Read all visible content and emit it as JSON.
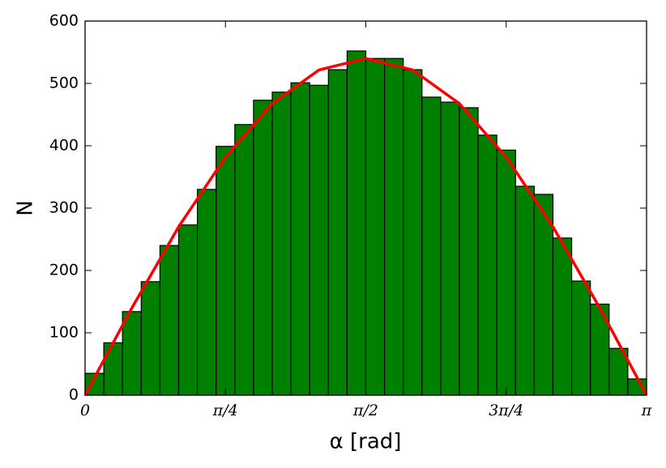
{
  "chart_data": {
    "type": "histogram",
    "xlabel": "α [rad]",
    "ylabel": "N",
    "color": "#008000",
    "bins": [
      0,
      0.1047,
      0.2094,
      0.3142,
      0.4189,
      0.5236,
      0.6283,
      0.733,
      0.8378,
      0.9425,
      1.0472,
      1.1519,
      1.2566,
      1.3614,
      1.4661,
      1.5708,
      1.6755,
      1.7802,
      1.885,
      1.9897,
      2.0944,
      2.1991,
      2.3038,
      2.4086,
      2.5133,
      2.618,
      2.7227,
      2.8274,
      2.9322,
      3.0369,
      3.1416
    ],
    "values": [
      35,
      84,
      134,
      182,
      240,
      273,
      330,
      399,
      434,
      473,
      486,
      501,
      497,
      522,
      552,
      540,
      540,
      522,
      478,
      470,
      461,
      417,
      393,
      335,
      322,
      252,
      183,
      146,
      75,
      26
    ],
    "curve": {
      "type": "line",
      "color": "#ff0000",
      "x": [
        0,
        0.2618,
        0.5236,
        0.7854,
        1.0472,
        1.309,
        1.5708,
        1.8326,
        2.0944,
        2.3562,
        2.618,
        2.8798,
        3.1416
      ],
      "values": [
        0,
        139.8,
        270,
        381.8,
        467.7,
        521.6,
        540,
        521.6,
        467.7,
        381.8,
        270,
        139.8,
        0
      ]
    },
    "xlim": [
      0,
      3.1416
    ],
    "ylim": [
      0,
      600
    ],
    "xticks": [
      0,
      {
        "value": 0.7854,
        "label": "π/4"
      },
      {
        "value": 1.5708,
        "label": "π/2"
      },
      {
        "value": 2.3562,
        "label": "3π/4"
      },
      {
        "value": 3.1416,
        "label": "π"
      }
    ],
    "yticks": [
      0,
      100,
      200,
      300,
      400,
      500,
      600
    ]
  }
}
